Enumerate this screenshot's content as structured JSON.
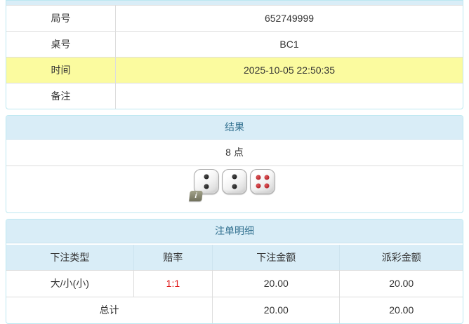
{
  "colors": {
    "heading_bg": "#d9edf7",
    "heading_text": "#31708f",
    "panel_border": "#bce8f1",
    "row_border": "#dddddd",
    "highlight_row_bg": "#fbfb9f",
    "odds_text": "#e01515"
  },
  "info_table": {
    "rows": [
      {
        "label": "局号",
        "value": "652749999",
        "highlight": false
      },
      {
        "label": "桌号",
        "value": "BC1",
        "highlight": false
      },
      {
        "label": "时间",
        "value": "2025-10-05 22:50:35",
        "highlight": true
      },
      {
        "label": "备注",
        "value": "",
        "highlight": false
      }
    ]
  },
  "result_panel": {
    "title": "结果",
    "points": "8 点",
    "dice": [
      {
        "value": 2,
        "color": "black"
      },
      {
        "value": 2,
        "color": "black"
      },
      {
        "value": 4,
        "color": "red"
      }
    ],
    "info_icon_label": "i"
  },
  "bet_panel": {
    "title": "注单明细",
    "columns": [
      "下注类型",
      "赔率",
      "下注金额",
      "派彩金额"
    ],
    "rows": [
      {
        "bet_type": "大/小(小)",
        "odds": "1:1",
        "bet_amount": "20.00",
        "payout": "20.00"
      }
    ],
    "total": {
      "label": "总计",
      "bet_amount": "20.00",
      "payout": "20.00"
    }
  }
}
